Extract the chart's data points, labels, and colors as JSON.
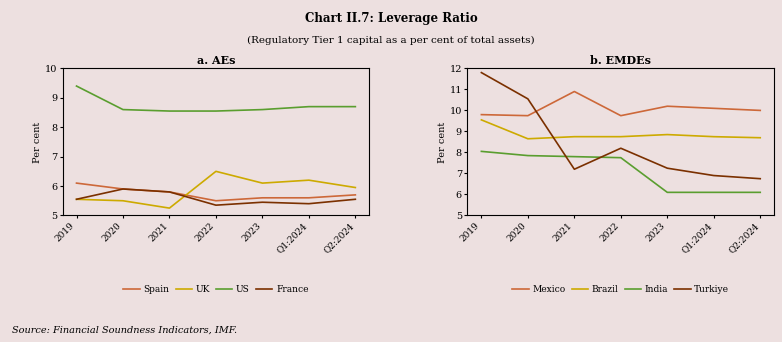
{
  "title": "Chart II.7: Leverage Ratio",
  "subtitle": "(Regulatory Tier 1 capital as a per cent of total assets)",
  "source": "Source: Financial Soundness Indicators, IMF.",
  "background_color": "#ede0e0",
  "panel_background": "#ede0e0",
  "x_labels": [
    "2019",
    "2020",
    "2021",
    "2022",
    "2023",
    "Q1:2024",
    "Q2:2024"
  ],
  "panel_a": {
    "title": "a. AEs",
    "ylabel": "Per cent",
    "ylim": [
      5,
      10
    ],
    "yticks": [
      5,
      6,
      7,
      8,
      9,
      10
    ],
    "series": {
      "Spain": {
        "color": "#cd6839",
        "values": [
          6.1,
          5.9,
          5.8,
          5.5,
          5.6,
          5.6,
          5.7
        ]
      },
      "UK": {
        "color": "#cdaa00",
        "values": [
          5.55,
          5.5,
          5.25,
          6.5,
          6.1,
          6.2,
          5.95
        ]
      },
      "US": {
        "color": "#5a9e2f",
        "values": [
          9.4,
          8.6,
          8.55,
          8.55,
          8.6,
          8.7,
          8.7
        ]
      },
      "France": {
        "color": "#7b3000",
        "values": [
          5.55,
          5.9,
          5.8,
          5.35,
          5.45,
          5.4,
          5.55
        ]
      }
    }
  },
  "panel_b": {
    "title": "b. EMDEs",
    "ylabel": "Per cent",
    "ylim": [
      5,
      12
    ],
    "yticks": [
      5,
      6,
      7,
      8,
      9,
      10,
      11,
      12
    ],
    "series": {
      "Mexico": {
        "color": "#cd6839",
        "values": [
          9.8,
          9.75,
          10.9,
          9.75,
          10.2,
          10.1,
          10.0
        ]
      },
      "Brazil": {
        "color": "#cdaa00",
        "values": [
          9.55,
          8.65,
          8.75,
          8.75,
          8.85,
          8.75,
          8.7
        ]
      },
      "India": {
        "color": "#5a9e2f",
        "values": [
          8.05,
          7.85,
          7.8,
          7.75,
          6.1,
          6.1,
          6.1
        ]
      },
      "Turkiye": {
        "color": "#7b3000",
        "values": [
          11.8,
          10.55,
          7.2,
          8.2,
          7.25,
          6.9,
          6.75
        ]
      }
    }
  }
}
